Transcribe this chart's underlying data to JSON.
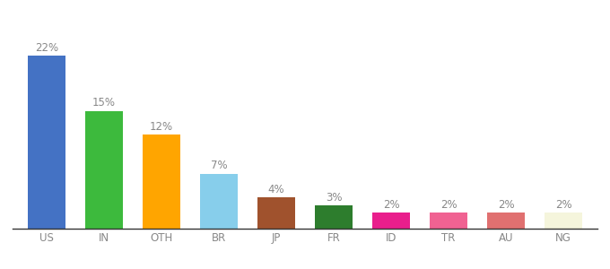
{
  "categories": [
    "US",
    "IN",
    "OTH",
    "BR",
    "JP",
    "FR",
    "ID",
    "TR",
    "AU",
    "NG"
  ],
  "values": [
    22,
    15,
    12,
    7,
    4,
    3,
    2,
    2,
    2,
    2
  ],
  "bar_colors": [
    "#4472c4",
    "#3dba3d",
    "#ffa500",
    "#87ceeb",
    "#a0522d",
    "#2d7d2d",
    "#e91e8c",
    "#f06292",
    "#e07070",
    "#f5f5dc"
  ],
  "ylim": [
    0,
    25
  ],
  "bar_width": 0.65,
  "label_fontsize": 8.5,
  "tick_fontsize": 8.5,
  "label_color": "#888888",
  "tick_color": "#888888",
  "background_color": "#ffffff"
}
